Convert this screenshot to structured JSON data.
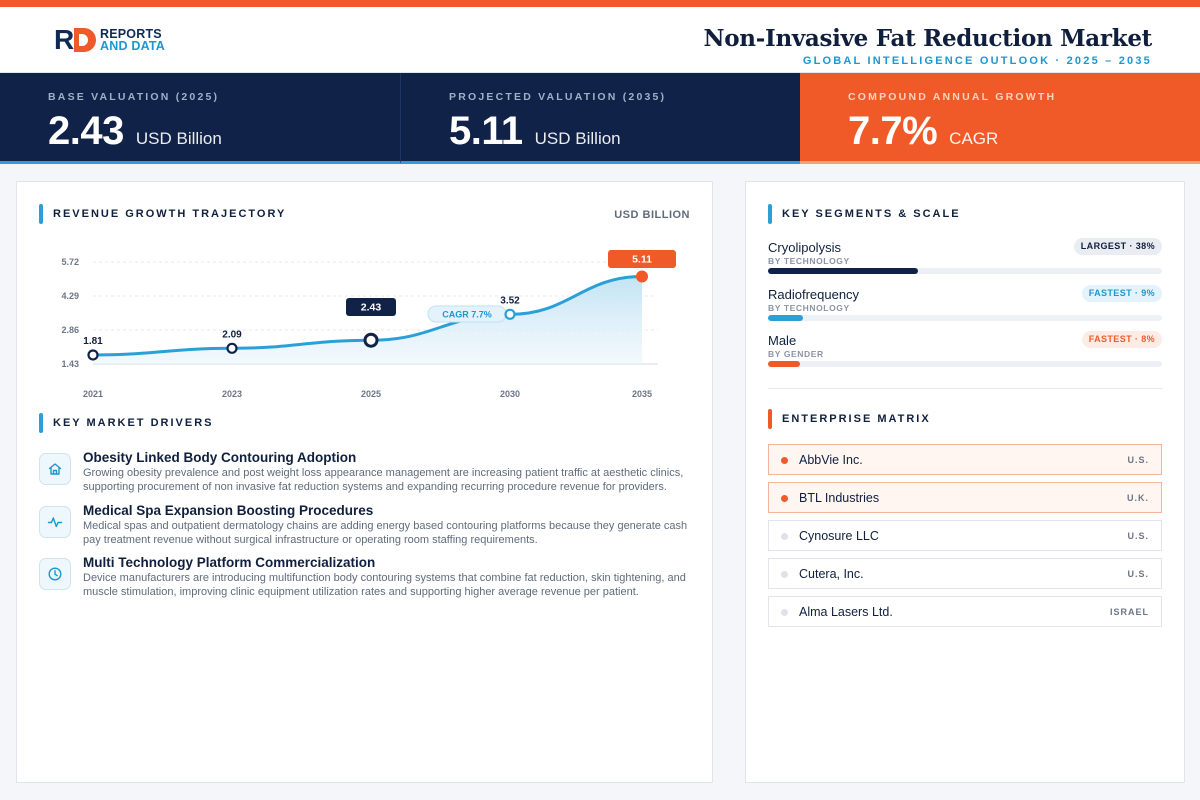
{
  "brand": {
    "line1": "REPORTS",
    "line2": "AND DATA"
  },
  "header": {
    "title": "Non-Invasive Fat Reduction Market",
    "subtitle": "GLOBAL INTELLIGENCE OUTLOOK · 2025 – 2035"
  },
  "kpis": [
    {
      "label": "BASE VALUATION (2025)",
      "value": "2.43",
      "unit": "USD Billion"
    },
    {
      "label": "PROJECTED VALUATION (2035)",
      "value": "5.11",
      "unit": "USD Billion"
    },
    {
      "label": "COMPOUND ANNUAL GROWTH",
      "value": "7.7%",
      "unit": "CAGR"
    }
  ],
  "revenue": {
    "section_title": "REVENUE GROWTH TRAJECTORY",
    "unit_label": "USD BILLION",
    "cagr_tag": "CAGR 7.7%"
  },
  "chart_data": {
    "type": "area",
    "title": "REVENUE GROWTH TRAJECTORY",
    "ylabel": "USD BILLION",
    "x": [
      "2021",
      "2023",
      "2025",
      "2030",
      "2035"
    ],
    "values": [
      1.81,
      2.09,
      2.43,
      3.52,
      5.11
    ],
    "labels": [
      "1.81",
      "2.09",
      "2.43",
      "3.52",
      "5.11"
    ],
    "yticks": [
      5.72,
      4.29,
      2.86,
      1.43
    ],
    "ytick_labels": [
      "5.72",
      "4.29",
      "2.86",
      "1.43"
    ],
    "ylim": [
      1.43,
      5.72
    ],
    "highlighted": {
      "2025": "navy",
      "2035": "orange"
    },
    "grid": true,
    "colors": {
      "line": "#2aa0d6",
      "fill_top": "#bfe2f4",
      "navy": "#102247",
      "orange": "#ef5a28"
    }
  },
  "drivers": {
    "section_title": "KEY MARKET DRIVERS",
    "items": [
      {
        "icon": "home-icon",
        "title": "Obesity Linked Body Contouring Adoption",
        "desc": "Growing obesity prevalence and post weight loss appearance management are increasing patient traffic at aesthetic clinics, supporting procurement of non invasive fat reduction systems and expanding recurring procedure revenue for providers."
      },
      {
        "icon": "activity-icon",
        "title": "Medical Spa Expansion Boosting Procedures",
        "desc": "Medical spas and outpatient dermatology chains are adding energy based contouring platforms because they generate cash pay treatment revenue without surgical infrastructure or operating room staffing requirements."
      },
      {
        "icon": "clock-icon",
        "title": "Multi Technology Platform Commercialization",
        "desc": "Device manufacturers are introducing multifunction body contouring systems that combine fat reduction, skin tightening, and muscle stimulation, improving clinic equipment utilization rates and supporting higher average revenue per patient."
      }
    ]
  },
  "segments": {
    "section_title": "KEY SEGMENTS & SCALE",
    "items": [
      {
        "name": "Cryolipolysis",
        "category": "BY TECHNOLOGY",
        "badge": "LARGEST · 38%",
        "share": 0.38,
        "color": "#102247"
      },
      {
        "name": "Radiofrequency",
        "category": "BY TECHNOLOGY",
        "badge": "FASTEST · 9%",
        "share": 0.09,
        "color": "#2aa0d6"
      },
      {
        "name": "Male",
        "category": "BY GENDER",
        "badge": "FASTEST · 8%",
        "share": 0.08,
        "color": "#ef5a28"
      }
    ]
  },
  "enterprise": {
    "section_title": "ENTERPRISE MATRIX",
    "items": [
      {
        "name": "AbbVie Inc.",
        "country": "U.S.",
        "highlight": true
      },
      {
        "name": "BTL Industries",
        "country": "U.K.",
        "highlight": true
      },
      {
        "name": "Cynosure LLC",
        "country": "U.S.",
        "highlight": false
      },
      {
        "name": "Cutera, Inc.",
        "country": "U.S.",
        "highlight": false
      },
      {
        "name": "Alma Lasers Ltd.",
        "country": "ISRAEL",
        "highlight": false
      }
    ]
  }
}
